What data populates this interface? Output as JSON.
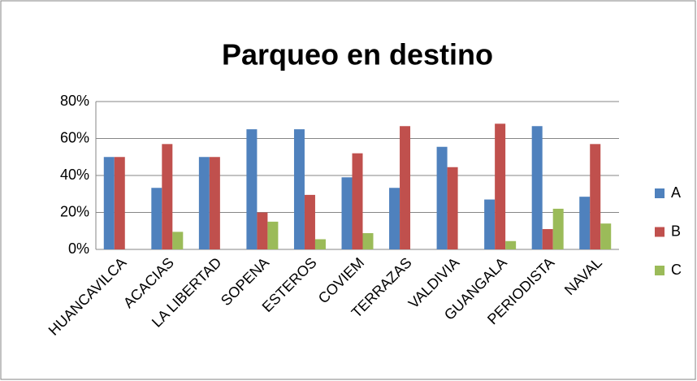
{
  "chart_data": {
    "type": "bar",
    "title": "Parqueo en destino",
    "categories": [
      "HUANCAVILCA",
      "ACACIAS",
      "LA LIBERTAD",
      "SOPENA",
      "ESTEROS",
      "COVIEM",
      "TERRAZAS",
      "VALDIVIA",
      "GUANGALA",
      "PERIODISTA",
      "NAVAL"
    ],
    "series": [
      {
        "name": "A",
        "color": "#4f81bd",
        "values": [
          50,
          33.3,
          50,
          65,
          65,
          39,
          33.3,
          55.5,
          27,
          66.7,
          28.5
        ]
      },
      {
        "name": "B",
        "color": "#c0504d",
        "values": [
          50,
          57,
          50,
          20,
          29.5,
          52,
          66.7,
          44.5,
          68,
          11,
          57
        ]
      },
      {
        "name": "C",
        "color": "#9bbb59",
        "values": [
          0,
          9.5,
          0,
          15,
          5.5,
          8.8,
          0,
          0,
          4.5,
          22,
          14
        ]
      }
    ],
    "ylim": [
      0,
      80
    ],
    "yticks": [
      {
        "value": 0,
        "label": "0%"
      },
      {
        "value": 20,
        "label": "20%"
      },
      {
        "value": 40,
        "label": "40%"
      },
      {
        "value": 60,
        "label": "60%"
      },
      {
        "value": 80,
        "label": "80%"
      }
    ],
    "grid": true,
    "legend": "right"
  }
}
